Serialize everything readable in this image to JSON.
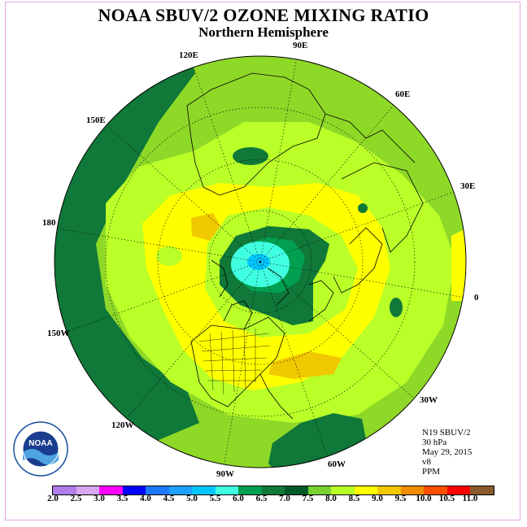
{
  "title": "NOAA SBUV/2 OZONE MIXING RATIO",
  "subtitle": "Northern Hemisphere",
  "longitude_labels": {
    "lon_90e": "90E",
    "lon_120e": "120E",
    "lon_60e": "60E",
    "lon_150e": "150E",
    "lon_30e": "30E",
    "lon_180": "180",
    "lon_0": "0",
    "lon_150w": "150W",
    "lon_30w": "30W",
    "lon_120w": "120W",
    "lon_60w": "60W",
    "lon_90w": "90W"
  },
  "info": {
    "instrument": "N19 SBUV/2",
    "level": "30 hPa",
    "date": "May 29, 2015",
    "version": "v8",
    "units": "PPM"
  },
  "logo": {
    "text": "NOAA",
    "ring_text": "NATIONAL OCEANIC AND ATMOSPHERIC ADMINISTRATION · U.S. DEPARTMENT OF COMMERCE"
  },
  "colorbar": {
    "ticks": [
      "2.0",
      "2.5",
      "3.0",
      "3.5",
      "4.0",
      "4.5",
      "5.0",
      "5.5",
      "6.0",
      "6.5",
      "7.0",
      "7.5",
      "8.0",
      "8.5",
      "9.0",
      "9.5",
      "10.0",
      "10.5",
      "11.0"
    ],
    "colors": [
      "#b07ee8",
      "#d8a8f0",
      "#ff00ff",
      "#0000ff",
      "#1e78ff",
      "#1ea0ff",
      "#00c8ff",
      "#40ffe0",
      "#00a050",
      "#107838",
      "#005a28",
      "#78d230",
      "#b8ff28",
      "#ffff00",
      "#f0c800",
      "#f08c00",
      "#ff5000",
      "#ff0000",
      "#8b5a2b"
    ]
  },
  "map_fill_colors": {
    "outer_green": "#8ed828",
    "lime": "#baff28",
    "yellow": "#ffff00",
    "orange": "#f0c800",
    "dark_green": "#107838",
    "darker_green": "#005a28",
    "cyan": "#40ffe0",
    "teal": "#00c8ff",
    "mid_green": "#00a050"
  }
}
